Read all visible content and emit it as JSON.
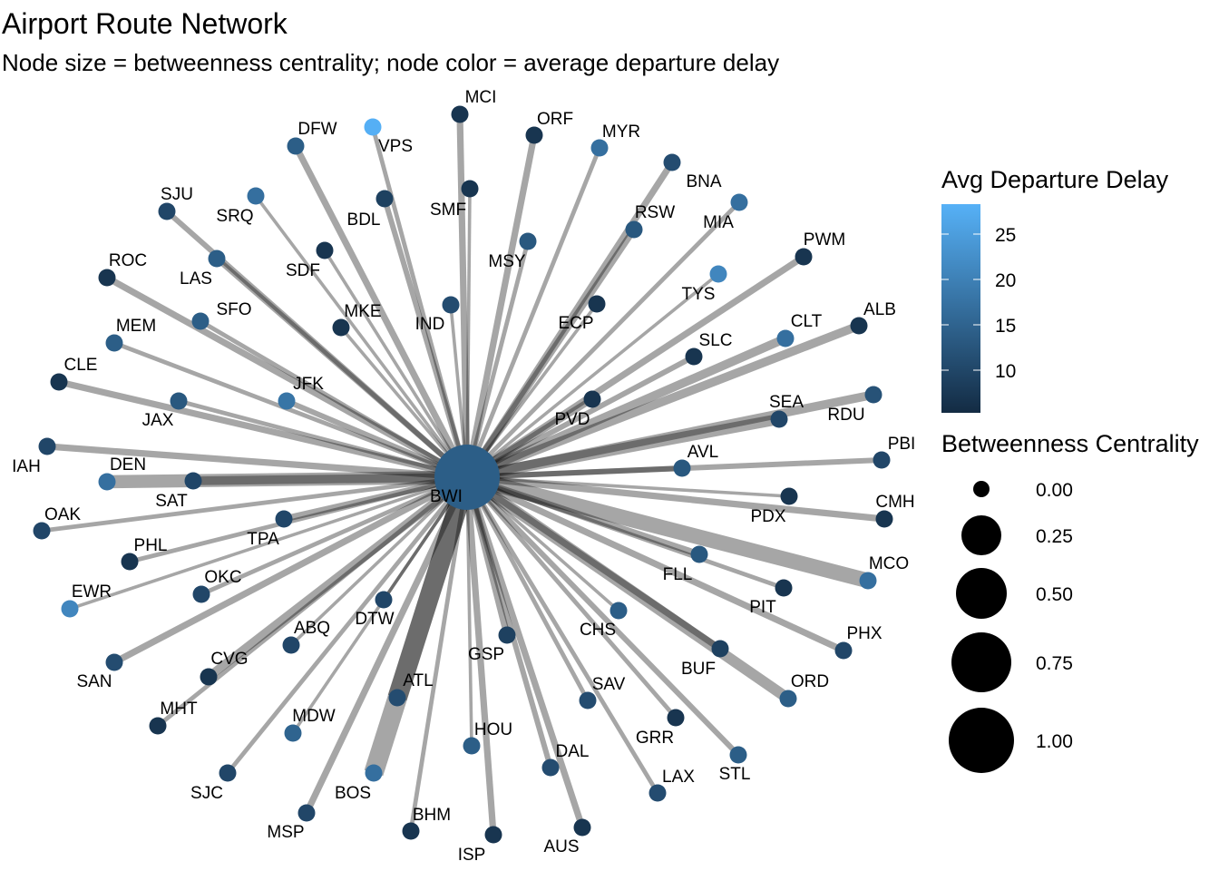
{
  "title": "Airport Route Network",
  "subtitle": "Node size = betweenness centrality; node color = average departure delay",
  "hub": {
    "code": "BWI",
    "delay": 14,
    "betweenness": 1.0
  },
  "nodes": [
    {
      "code": "MCI",
      "delay": 7,
      "betweenness": 0,
      "weight": 3
    },
    {
      "code": "ORF",
      "delay": 7,
      "betweenness": 0,
      "weight": 3
    },
    {
      "code": "MYR",
      "delay": 17,
      "betweenness": 0,
      "weight": 2
    },
    {
      "code": "BNA",
      "delay": 11,
      "betweenness": 0,
      "weight": 3
    },
    {
      "code": "MIA",
      "delay": 17,
      "betweenness": 0,
      "weight": 2
    },
    {
      "code": "RSW",
      "delay": 13,
      "betweenness": 0,
      "weight": 3
    },
    {
      "code": "PWM",
      "delay": 7,
      "betweenness": 0,
      "weight": 3
    },
    {
      "code": "TYS",
      "delay": 21,
      "betweenness": 0,
      "weight": 1.5
    },
    {
      "code": "ALB",
      "delay": 7,
      "betweenness": 0,
      "weight": 4
    },
    {
      "code": "CLT",
      "delay": 17,
      "betweenness": 0,
      "weight": 4
    },
    {
      "code": "SLC",
      "delay": 7,
      "betweenness": 0,
      "weight": 2.5
    },
    {
      "code": "ECP",
      "delay": 7,
      "betweenness": 0,
      "weight": 1.5
    },
    {
      "code": "MSY",
      "delay": 13,
      "betweenness": 0,
      "weight": 2
    },
    {
      "code": "SMF",
      "delay": 7,
      "betweenness": 0,
      "weight": 1.5
    },
    {
      "code": "IND",
      "delay": 11,
      "betweenness": 0,
      "weight": 1.5
    },
    {
      "code": "BDL",
      "delay": 9,
      "betweenness": 0,
      "weight": 2.5
    },
    {
      "code": "VPS",
      "delay": 28,
      "betweenness": 0,
      "weight": 2
    },
    {
      "code": "DFW",
      "delay": 14,
      "betweenness": 0,
      "weight": 3
    },
    {
      "code": "SRQ",
      "delay": 17,
      "betweenness": 0,
      "weight": 1.5
    },
    {
      "code": "SJU",
      "delay": 10,
      "betweenness": 0,
      "weight": 2.5
    },
    {
      "code": "LAS",
      "delay": 14,
      "betweenness": 0,
      "weight": 2.5
    },
    {
      "code": "SDF",
      "delay": 7,
      "betweenness": 0,
      "weight": 1.5
    },
    {
      "code": "MKE",
      "delay": 7,
      "betweenness": 0,
      "weight": 1.5
    },
    {
      "code": "ROC",
      "delay": 7,
      "betweenness": 0,
      "weight": 3
    },
    {
      "code": "SFO",
      "delay": 14,
      "betweenness": 0,
      "weight": 2
    },
    {
      "code": "MEM",
      "delay": 14,
      "betweenness": 0,
      "weight": 2
    },
    {
      "code": "JFK",
      "delay": 18,
      "betweenness": 0,
      "weight": 2.5
    },
    {
      "code": "CLE",
      "delay": 7,
      "betweenness": 0,
      "weight": 3
    },
    {
      "code": "JAX",
      "delay": 13,
      "betweenness": 0,
      "weight": 2
    },
    {
      "code": "PVD",
      "delay": 7,
      "betweenness": 0,
      "weight": 3
    },
    {
      "code": "SEA",
      "delay": 10,
      "betweenness": 0,
      "weight": 5
    },
    {
      "code": "RDU",
      "delay": 12,
      "betweenness": 0,
      "weight": 4
    },
    {
      "code": "PBI",
      "delay": 10,
      "betweenness": 0,
      "weight": 2.5
    },
    {
      "code": "AVL",
      "delay": 13,
      "betweenness": 0,
      "weight": 2.5
    },
    {
      "code": "IAH",
      "delay": 10,
      "betweenness": 0,
      "weight": 3
    },
    {
      "code": "DEN",
      "delay": 17,
      "betweenness": 0,
      "weight": 6
    },
    {
      "code": "SAT",
      "delay": 10,
      "betweenness": 0,
      "weight": 4
    },
    {
      "code": "CMH",
      "delay": 7,
      "betweenness": 0,
      "weight": 3
    },
    {
      "code": "PDX",
      "delay": 7,
      "betweenness": 0,
      "weight": 1.5
    },
    {
      "code": "OAK",
      "delay": 10,
      "betweenness": 0,
      "weight": 2
    },
    {
      "code": "TPA",
      "delay": 10,
      "betweenness": 0,
      "weight": 3
    },
    {
      "code": "PHL",
      "delay": 7,
      "betweenness": 0,
      "weight": 2
    },
    {
      "code": "MCO",
      "delay": 17,
      "betweenness": 0,
      "weight": 7
    },
    {
      "code": "FLL",
      "delay": 13,
      "betweenness": 0,
      "weight": 3
    },
    {
      "code": "PIT",
      "delay": 7,
      "betweenness": 0,
      "weight": 2
    },
    {
      "code": "EWR",
      "delay": 21,
      "betweenness": 0,
      "weight": 1.5
    },
    {
      "code": "OKC",
      "delay": 10,
      "betweenness": 0,
      "weight": 2
    },
    {
      "code": "PHX",
      "delay": 10,
      "betweenness": 0,
      "weight": 3
    },
    {
      "code": "ABQ",
      "delay": 10,
      "betweenness": 0,
      "weight": 1.5
    },
    {
      "code": "DTW",
      "delay": 10,
      "betweenness": 0,
      "weight": 1.5
    },
    {
      "code": "CHS",
      "delay": 14,
      "betweenness": 0,
      "weight": 1.5
    },
    {
      "code": "SAN",
      "delay": 11,
      "betweenness": 0,
      "weight": 3
    },
    {
      "code": "CVG",
      "delay": 7,
      "betweenness": 0,
      "weight": 4
    },
    {
      "code": "BUF",
      "delay": 9,
      "betweenness": 0,
      "weight": 3
    },
    {
      "code": "GSP",
      "delay": 9,
      "betweenness": 0,
      "weight": 3
    },
    {
      "code": "ATL",
      "delay": 11,
      "betweenness": 0,
      "weight": 9
    },
    {
      "code": "ORD",
      "delay": 14,
      "betweenness": 0,
      "weight": 5
    },
    {
      "code": "MHT",
      "delay": 7,
      "betweenness": 0,
      "weight": 2
    },
    {
      "code": "SAV",
      "delay": 11,
      "betweenness": 0,
      "weight": 2
    },
    {
      "code": "MDW",
      "delay": 15,
      "betweenness": 0,
      "weight": 1.5
    },
    {
      "code": "HOU",
      "delay": 14,
      "betweenness": 0,
      "weight": 1.5
    },
    {
      "code": "GRR",
      "delay": 7,
      "betweenness": 0,
      "weight": 2
    },
    {
      "code": "DAL",
      "delay": 11,
      "betweenness": 0,
      "weight": 2.5
    },
    {
      "code": "STL",
      "delay": 14,
      "betweenness": 0,
      "weight": 2.5
    },
    {
      "code": "SJC",
      "delay": 10,
      "betweenness": 0,
      "weight": 2
    },
    {
      "code": "BOS",
      "delay": 17,
      "betweenness": 0,
      "weight": 9
    },
    {
      "code": "LAX",
      "delay": 11,
      "betweenness": 0,
      "weight": 2
    },
    {
      "code": "MSP",
      "delay": 10,
      "betweenness": 0,
      "weight": 3
    },
    {
      "code": "BHM",
      "delay": 7,
      "betweenness": 0,
      "weight": 2
    },
    {
      "code": "ISP",
      "delay": 7,
      "betweenness": 0,
      "weight": 3
    },
    {
      "code": "AUS",
      "delay": 7,
      "betweenness": 0,
      "weight": 3
    }
  ],
  "legend": {
    "color_title": "Avg Departure Delay",
    "color_range": [
      5.3,
      28.3
    ],
    "color_low": "#132B43",
    "color_high": "#56B1F7",
    "color_ticks": [
      "25",
      "20",
      "15",
      "10"
    ],
    "size_title": "Betweenness Centrality",
    "size_ticks": [
      "0.00",
      "0.25",
      "0.50",
      "0.75",
      "1.00"
    ]
  }
}
